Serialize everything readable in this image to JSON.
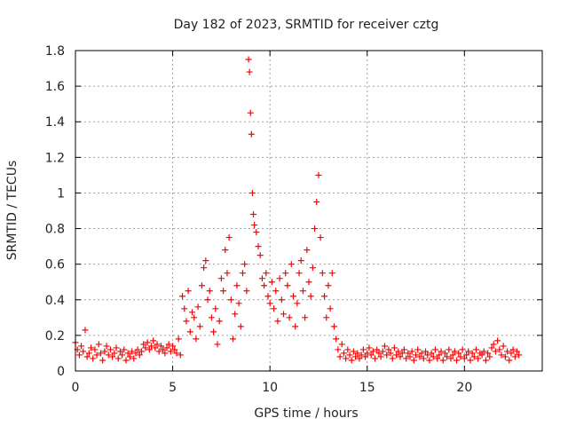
{
  "chart_data": {
    "type": "scatter",
    "title": "Day 182 of 2023, SRMTID for receiver cztg",
    "xlabel": "GPS time / hours",
    "ylabel": "SRMTID / TECUs",
    "xlim": [
      0,
      24
    ],
    "ylim": [
      0,
      1.8
    ],
    "xticks": [
      0,
      5,
      10,
      15,
      20
    ],
    "yticks": [
      0,
      0.2,
      0.4,
      0.6,
      0.8,
      1,
      1.2,
      1.4,
      1.6,
      1.8
    ],
    "xtick_labels": [
      "0",
      "5",
      "10",
      "15",
      "20"
    ],
    "ytick_labels": [
      "0",
      "0.2",
      "0.4",
      "0.6",
      "0.8",
      "1",
      "1.2",
      "1.4",
      "1.6",
      "1.8"
    ],
    "grid": true,
    "marker": "+",
    "color": "#ff0000",
    "series": [
      {
        "name": "SRMTID",
        "points": [
          [
            0.0,
            0.16
          ],
          [
            0.1,
            0.12
          ],
          [
            0.2,
            0.09
          ],
          [
            0.3,
            0.14
          ],
          [
            0.4,
            0.11
          ],
          [
            0.5,
            0.23
          ],
          [
            0.6,
            0.08
          ],
          [
            0.7,
            0.1
          ],
          [
            0.8,
            0.13
          ],
          [
            0.9,
            0.07
          ],
          [
            1.0,
            0.12
          ],
          [
            1.1,
            0.09
          ],
          [
            1.2,
            0.15
          ],
          [
            1.3,
            0.1
          ],
          [
            1.4,
            0.06
          ],
          [
            1.5,
            0.11
          ],
          [
            1.6,
            0.14
          ],
          [
            1.7,
            0.09
          ],
          [
            1.8,
            0.12
          ],
          [
            1.9,
            0.08
          ],
          [
            2.0,
            0.1
          ],
          [
            2.1,
            0.13
          ],
          [
            2.2,
            0.07
          ],
          [
            2.3,
            0.11
          ],
          [
            2.4,
            0.09
          ],
          [
            2.5,
            0.12
          ],
          [
            2.6,
            0.06
          ],
          [
            2.7,
            0.1
          ],
          [
            2.8,
            0.08
          ],
          [
            2.9,
            0.11
          ],
          [
            3.0,
            0.07
          ],
          [
            3.1,
            0.1
          ],
          [
            3.2,
            0.12
          ],
          [
            3.3,
            0.09
          ],
          [
            3.4,
            0.11
          ],
          [
            3.5,
            0.15
          ],
          [
            3.6,
            0.13
          ],
          [
            3.7,
            0.16
          ],
          [
            3.8,
            0.12
          ],
          [
            3.9,
            0.14
          ],
          [
            4.0,
            0.17
          ],
          [
            4.1,
            0.13
          ],
          [
            4.2,
            0.15
          ],
          [
            4.3,
            0.11
          ],
          [
            4.4,
            0.14
          ],
          [
            4.5,
            0.12
          ],
          [
            4.6,
            0.1
          ],
          [
            4.7,
            0.13
          ],
          [
            4.8,
            0.15
          ],
          [
            4.9,
            0.11
          ],
          [
            5.0,
            0.14
          ],
          [
            5.1,
            0.12
          ],
          [
            5.2,
            0.1
          ],
          [
            5.3,
            0.18
          ],
          [
            5.4,
            0.09
          ],
          [
            5.5,
            0.42
          ],
          [
            5.6,
            0.35
          ],
          [
            5.7,
            0.28
          ],
          [
            5.8,
            0.45
          ],
          [
            5.9,
            0.22
          ],
          [
            6.0,
            0.33
          ],
          [
            6.1,
            0.3
          ],
          [
            6.2,
            0.18
          ],
          [
            6.3,
            0.36
          ],
          [
            6.4,
            0.25
          ],
          [
            6.5,
            0.48
          ],
          [
            6.6,
            0.58
          ],
          [
            6.7,
            0.62
          ],
          [
            6.8,
            0.4
          ],
          [
            6.9,
            0.45
          ],
          [
            7.0,
            0.3
          ],
          [
            7.1,
            0.22
          ],
          [
            7.2,
            0.35
          ],
          [
            7.3,
            0.15
          ],
          [
            7.4,
            0.28
          ],
          [
            7.5,
            0.52
          ],
          [
            7.6,
            0.45
          ],
          [
            7.7,
            0.68
          ],
          [
            7.8,
            0.55
          ],
          [
            7.9,
            0.75
          ],
          [
            8.0,
            0.4
          ],
          [
            8.1,
            0.18
          ],
          [
            8.2,
            0.32
          ],
          [
            8.3,
            0.48
          ],
          [
            8.4,
            0.38
          ],
          [
            8.5,
            0.25
          ],
          [
            8.6,
            0.55
          ],
          [
            8.7,
            0.6
          ],
          [
            8.8,
            0.45
          ],
          [
            8.9,
            1.75
          ],
          [
            8.95,
            1.68
          ],
          [
            9.0,
            1.45
          ],
          [
            9.05,
            1.33
          ],
          [
            9.1,
            1.0
          ],
          [
            9.15,
            0.88
          ],
          [
            9.2,
            0.82
          ],
          [
            9.3,
            0.78
          ],
          [
            9.4,
            0.7
          ],
          [
            9.5,
            0.65
          ],
          [
            9.6,
            0.52
          ],
          [
            9.7,
            0.48
          ],
          [
            9.8,
            0.55
          ],
          [
            9.9,
            0.42
          ],
          [
            10.0,
            0.38
          ],
          [
            10.1,
            0.5
          ],
          [
            10.2,
            0.35
          ],
          [
            10.3,
            0.45
          ],
          [
            10.4,
            0.28
          ],
          [
            10.5,
            0.52
          ],
          [
            10.6,
            0.4
          ],
          [
            10.7,
            0.32
          ],
          [
            10.8,
            0.55
          ],
          [
            10.9,
            0.48
          ],
          [
            11.0,
            0.3
          ],
          [
            11.1,
            0.6
          ],
          [
            11.2,
            0.42
          ],
          [
            11.3,
            0.25
          ],
          [
            11.4,
            0.38
          ],
          [
            11.5,
            0.55
          ],
          [
            11.6,
            0.62
          ],
          [
            11.7,
            0.45
          ],
          [
            11.8,
            0.3
          ],
          [
            11.9,
            0.68
          ],
          [
            12.0,
            0.5
          ],
          [
            12.1,
            0.42
          ],
          [
            12.2,
            0.58
          ],
          [
            12.3,
            0.8
          ],
          [
            12.4,
            0.95
          ],
          [
            12.5,
            1.1
          ],
          [
            12.6,
            0.75
          ],
          [
            12.7,
            0.55
          ],
          [
            12.8,
            0.42
          ],
          [
            12.9,
            0.3
          ],
          [
            13.0,
            0.48
          ],
          [
            13.1,
            0.35
          ],
          [
            13.2,
            0.55
          ],
          [
            13.3,
            0.25
          ],
          [
            13.4,
            0.18
          ],
          [
            13.5,
            0.12
          ],
          [
            13.6,
            0.08
          ],
          [
            13.7,
            0.15
          ],
          [
            13.8,
            0.1
          ],
          [
            13.9,
            0.07
          ],
          [
            14.0,
            0.12
          ],
          [
            14.1,
            0.09
          ],
          [
            14.2,
            0.06
          ],
          [
            14.3,
            0.11
          ],
          [
            14.4,
            0.08
          ],
          [
            14.5,
            0.1
          ],
          [
            14.6,
            0.07
          ],
          [
            14.7,
            0.09
          ],
          [
            14.8,
            0.12
          ],
          [
            14.9,
            0.08
          ],
          [
            15.0,
            0.1
          ],
          [
            15.1,
            0.13
          ],
          [
            15.2,
            0.09
          ],
          [
            15.3,
            0.11
          ],
          [
            15.4,
            0.07
          ],
          [
            15.5,
            0.12
          ],
          [
            15.6,
            0.1
          ],
          [
            15.7,
            0.08
          ],
          [
            15.8,
            0.11
          ],
          [
            15.9,
            0.14
          ],
          [
            16.0,
            0.09
          ],
          [
            16.1,
            0.12
          ],
          [
            16.2,
            0.1
          ],
          [
            16.3,
            0.07
          ],
          [
            16.4,
            0.13
          ],
          [
            16.5,
            0.09
          ],
          [
            16.6,
            0.11
          ],
          [
            16.7,
            0.08
          ],
          [
            16.8,
            0.1
          ],
          [
            16.9,
            0.12
          ],
          [
            17.0,
            0.07
          ],
          [
            17.1,
            0.1
          ],
          [
            17.2,
            0.08
          ],
          [
            17.3,
            0.11
          ],
          [
            17.4,
            0.06
          ],
          [
            17.5,
            0.09
          ],
          [
            17.6,
            0.12
          ],
          [
            17.7,
            0.08
          ],
          [
            17.8,
            0.1
          ],
          [
            17.9,
            0.07
          ],
          [
            18.0,
            0.11
          ],
          [
            18.1,
            0.09
          ],
          [
            18.2,
            0.06
          ],
          [
            18.3,
            0.1
          ],
          [
            18.4,
            0.08
          ],
          [
            18.5,
            0.12
          ],
          [
            18.6,
            0.07
          ],
          [
            18.7,
            0.09
          ],
          [
            18.8,
            0.11
          ],
          [
            18.9,
            0.06
          ],
          [
            19.0,
            0.1
          ],
          [
            19.1,
            0.08
          ],
          [
            19.2,
            0.12
          ],
          [
            19.3,
            0.07
          ],
          [
            19.4,
            0.09
          ],
          [
            19.5,
            0.11
          ],
          [
            19.6,
            0.06
          ],
          [
            19.7,
            0.1
          ],
          [
            19.8,
            0.08
          ],
          [
            19.9,
            0.12
          ],
          [
            20.0,
            0.07
          ],
          [
            20.1,
            0.09
          ],
          [
            20.2,
            0.11
          ],
          [
            20.3,
            0.06
          ],
          [
            20.4,
            0.1
          ],
          [
            20.5,
            0.08
          ],
          [
            20.6,
            0.12
          ],
          [
            20.7,
            0.07
          ],
          [
            20.8,
            0.1
          ],
          [
            20.9,
            0.09
          ],
          [
            21.0,
            0.11
          ],
          [
            21.1,
            0.06
          ],
          [
            21.2,
            0.1
          ],
          [
            21.3,
            0.08
          ],
          [
            21.4,
            0.13
          ],
          [
            21.5,
            0.15
          ],
          [
            21.6,
            0.11
          ],
          [
            21.7,
            0.17
          ],
          [
            21.8,
            0.12
          ],
          [
            21.9,
            0.09
          ],
          [
            22.0,
            0.14
          ],
          [
            22.1,
            0.08
          ],
          [
            22.2,
            0.11
          ],
          [
            22.3,
            0.06
          ],
          [
            22.4,
            0.1
          ],
          [
            22.5,
            0.12
          ],
          [
            22.6,
            0.08
          ],
          [
            22.7,
            0.11
          ],
          [
            22.8,
            0.09
          ]
        ]
      }
    ]
  }
}
